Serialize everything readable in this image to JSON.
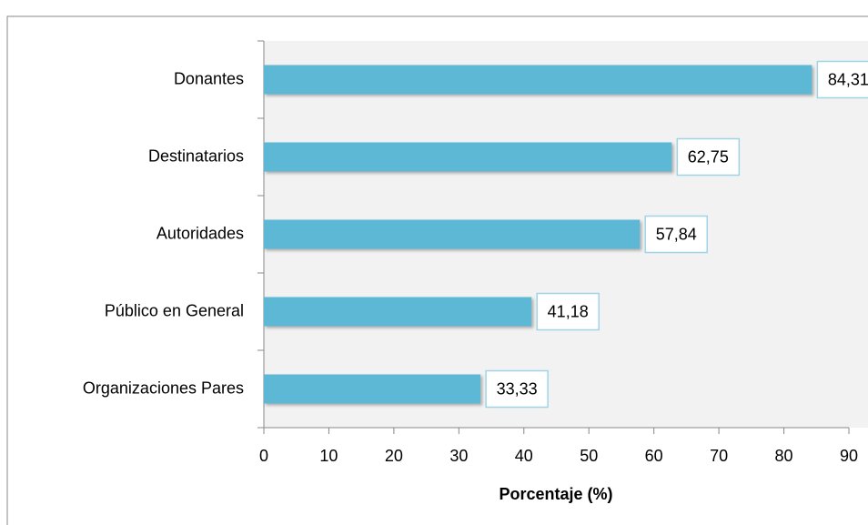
{
  "chart_data": {
    "type": "bar",
    "orientation": "horizontal",
    "x_label": "Porcentaje (%)",
    "categories": [
      "Donantes",
      "Destinatarios",
      "Autoridades",
      "Público en General",
      "Organizaciones Pares"
    ],
    "values": [
      84.31,
      62.75,
      57.84,
      41.18,
      33.33
    ],
    "value_labels": [
      "84,31",
      "62,75",
      "57,84",
      "41,18",
      "33,33"
    ],
    "color": "#5bb8d4",
    "xlim": [
      0,
      90
    ],
    "xticks": [
      0,
      10,
      20,
      30,
      40,
      50,
      60,
      70,
      80,
      90
    ]
  }
}
